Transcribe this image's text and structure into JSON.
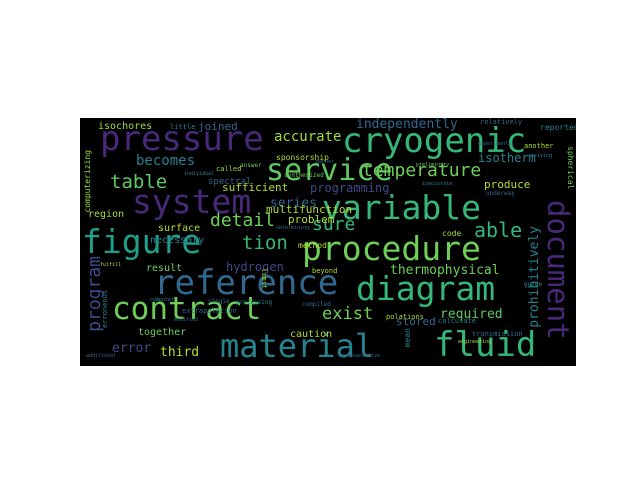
{
  "colors": {
    "background": "#000000",
    "figure": "#ffffff",
    "palette": [
      "#440154",
      "#482878",
      "#3e4a89",
      "#31688e",
      "#26828e",
      "#1f9e89",
      "#35b779",
      "#6ece58",
      "#b5de2b",
      "#fde725"
    ]
  },
  "wordcloud": {
    "words": [
      {
        "text": "pressure",
        "color": "#482878",
        "weight": 38
      },
      {
        "text": "cryogenic",
        "color": "#35b779",
        "weight": 36
      },
      {
        "text": "service",
        "color": "#5ec962",
        "weight": 32
      },
      {
        "text": "system",
        "color": "#482878",
        "weight": 34
      },
      {
        "text": "variable",
        "color": "#35b779",
        "weight": 34
      },
      {
        "text": "figure",
        "color": "#1f9e89",
        "weight": 34
      },
      {
        "text": "procedure",
        "color": "#6ece58",
        "weight": 34
      },
      {
        "text": "document",
        "color": "#482878",
        "weight": 30
      },
      {
        "text": "reference",
        "color": "#31688e",
        "weight": 36
      },
      {
        "text": "diagram",
        "color": "#35b779",
        "weight": 34
      },
      {
        "text": "contract",
        "color": "#6ece58",
        "weight": 32
      },
      {
        "text": "material",
        "color": "#26828e",
        "weight": 34
      },
      {
        "text": "fluid",
        "color": "#35b779",
        "weight": 36
      },
      {
        "text": "temperature",
        "color": "#6ece58",
        "weight": 20
      },
      {
        "text": "table",
        "color": "#5ec962",
        "weight": 20
      },
      {
        "text": "accurate",
        "color": "#a0da39",
        "weight": 15
      },
      {
        "text": "independently",
        "color": "#31688e",
        "weight": 14
      },
      {
        "text": "becomes",
        "color": "#26828e",
        "weight": 15
      },
      {
        "text": "isotherm",
        "color": "#26828e",
        "weight": 13
      },
      {
        "text": "programming",
        "color": "#3e4a89",
        "weight": 13
      },
      {
        "text": "produce",
        "color": "#b5de2b",
        "weight": 12
      },
      {
        "text": "series",
        "color": "#31688e",
        "weight": 14
      },
      {
        "text": "sufficient",
        "color": "#b5de2b",
        "weight": 12
      },
      {
        "text": "detail",
        "color": "#6ece58",
        "weight": 19
      },
      {
        "text": "sure",
        "color": "#35b779",
        "weight": 19
      },
      {
        "text": "able",
        "color": "#35b779",
        "weight": 21
      },
      {
        "text": "problem",
        "color": "#b5de2b",
        "weight": 12
      },
      {
        "text": "tion",
        "color": "#35b779",
        "weight": 20
      },
      {
        "text": "program",
        "color": "#3e4a89",
        "weight": 19
      },
      {
        "text": "hydrogen",
        "color": "#3e4a89",
        "weight": 13
      },
      {
        "text": "thermophysical",
        "color": "#6ece58",
        "weight": 14
      },
      {
        "text": "exist",
        "color": "#6ece58",
        "weight": 18
      },
      {
        "text": "prohibitively",
        "color": "#26828e",
        "weight": 14
      },
      {
        "text": "required",
        "color": "#5ec962",
        "weight": 14
      },
      {
        "text": "error",
        "color": "#3e4a89",
        "weight": 14
      },
      {
        "text": "third",
        "color": "#b5de2b",
        "weight": 14
      },
      {
        "text": "caution",
        "color": "#b5de2b",
        "weight": 11
      },
      {
        "text": "stored",
        "color": "#31688e",
        "weight": 12
      },
      {
        "text": "multifunction",
        "color": "#b5de2b",
        "weight": 12
      },
      {
        "text": "joined",
        "color": "#31688e",
        "weight": 12
      },
      {
        "text": "isochores",
        "color": "#a0da39",
        "weight": 11
      },
      {
        "text": "sponsorship",
        "color": "#b5de2b",
        "weight": 8
      },
      {
        "text": "spectral",
        "color": "#31688e",
        "weight": 9
      },
      {
        "text": "region",
        "color": "#a0da39",
        "weight": 10
      },
      {
        "text": "surface",
        "color": "#b5de2b",
        "weight": 10
      },
      {
        "text": "necessary",
        "color": "#26828e",
        "weight": 10
      },
      {
        "text": "result",
        "color": "#6ece58",
        "weight": 10
      },
      {
        "text": "together",
        "color": "#6ece58",
        "weight": 10
      },
      {
        "text": "method",
        "color": "#b5de2b",
        "weight": 8
      },
      {
        "text": "code",
        "color": "#a0da39",
        "weight": 8
      },
      {
        "text": "beyond",
        "color": "#b5de2b",
        "weight": 7
      },
      {
        "text": "transmission",
        "color": "#31688e",
        "weight": 8
      },
      {
        "text": "calculate",
        "color": "#26828e",
        "weight": 7
      },
      {
        "text": "reported",
        "color": "#26828e",
        "weight": 8
      },
      {
        "text": "relatively",
        "color": "#31688e",
        "weight": 7
      },
      {
        "text": "spherical",
        "color": "#6ece58",
        "weight": 8
      },
      {
        "text": "mean",
        "color": "#26828e",
        "weight": 8
      },
      {
        "text": "computerizing",
        "color": "#a0da39",
        "weight": 8
      },
      {
        "text": "called",
        "color": "#a0da39",
        "weight": 7
      },
      {
        "text": "little",
        "color": "#26828e",
        "weight": 7
      },
      {
        "text": "another",
        "color": "#b5de2b",
        "weight": 7
      },
      {
        "text": "synthesized",
        "color": "#6ece58",
        "weight": 6
      },
      {
        "text": "underway",
        "color": "#31688e",
        "weight": 6
      },
      {
        "text": "extrapolation",
        "color": "#31688e",
        "weight": 7
      },
      {
        "text": "erroneous",
        "color": "#26828e",
        "weight": 7
      },
      {
        "text": "limit",
        "color": "#a0da39",
        "weight": 7
      },
      {
        "text": "polations",
        "color": "#b5de2b",
        "weight": 7
      },
      {
        "text": "compiled",
        "color": "#31688e",
        "weight": 6
      },
      {
        "text": "processing",
        "color": "#26828e",
        "weight": 6
      },
      {
        "text": "single",
        "color": "#31688e",
        "weight": 6
      },
      {
        "text": "answer",
        "color": "#6ece58",
        "weight": 6
      },
      {
        "text": "guide",
        "color": "#26828e",
        "weight": 6
      },
      {
        "text": "engineering",
        "color": "#a0da39",
        "weight": 5
      },
      {
        "text": "determining",
        "color": "#31688e",
        "weight": 5
      },
      {
        "text": "individual",
        "color": "#26828e",
        "weight": 5
      },
      {
        "text": "experimental",
        "color": "#31688e",
        "weight": 5
      },
      {
        "text": "manner",
        "color": "#31688e",
        "weight": 5
      },
      {
        "text": "striving",
        "color": "#26828e",
        "weight": 5
      },
      {
        "text": "preliminary",
        "color": "#6ece58",
        "weight": 5
      },
      {
        "text": "inaccurate",
        "color": "#26828e",
        "weight": 5
      },
      {
        "text": "additional",
        "color": "#31688e",
        "weight": 5
      },
      {
        "text": "fulfill",
        "color": "#b5de2b",
        "weight": 5
      },
      {
        "text": "modified",
        "color": "#31688e",
        "weight": 5
      },
      {
        "text": "computer",
        "color": "#26828e",
        "weight": 5
      },
      {
        "text": "representative",
        "color": "#31688e",
        "weight": 5
      }
    ]
  }
}
